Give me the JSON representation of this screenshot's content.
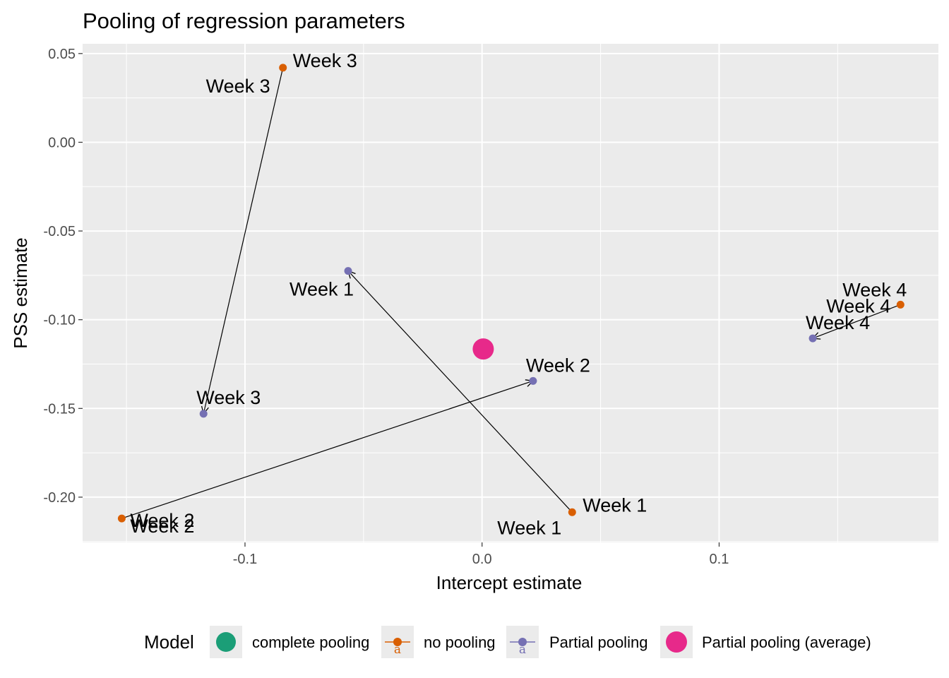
{
  "chart_data": {
    "type": "scatter",
    "title": "Pooling of regression parameters",
    "xlabel": "Intercept estimate",
    "ylabel": "PSS estimate",
    "xlim": [
      -0.1685,
      0.1925
    ],
    "ylim": [
      -0.2255,
      0.0555
    ],
    "x_ticks": [
      -0.1,
      0.0,
      0.1
    ],
    "x_tick_labels": [
      "-0.1",
      "0.0",
      "0.1"
    ],
    "y_ticks": [
      0.05,
      0.0,
      -0.05,
      -0.1,
      -0.15,
      -0.2
    ],
    "y_tick_labels": [
      "0.05",
      "0.00",
      "-0.05",
      "-0.10",
      "-0.15",
      "-0.20"
    ],
    "grid": true,
    "legend": {
      "title": "Model",
      "position": "bottom",
      "entries": [
        {
          "label": "complete pooling",
          "color": "#1b9e77"
        },
        {
          "label": "no pooling",
          "color": "#d95f02"
        },
        {
          "label": "Partial pooling",
          "color": "#7570b3"
        },
        {
          "label": "Partial pooling (average)",
          "color": "#e7298a"
        }
      ]
    },
    "series": [
      {
        "name": "no pooling",
        "color": "#d95f02",
        "points": [
          {
            "label": "Week 1",
            "x": 0.038,
            "y": -0.2085
          },
          {
            "label": "Week 2",
            "x": -0.152,
            "y": -0.212
          },
          {
            "label": "Week 3",
            "x": -0.084,
            "y": 0.042
          },
          {
            "label": "Week 4",
            "x": 0.1765,
            "y": -0.0915
          }
        ]
      },
      {
        "name": "Partial pooling",
        "color": "#7570b3",
        "points": [
          {
            "label": "Week 1",
            "x": -0.0565,
            "y": -0.0725
          },
          {
            "label": "Week 2",
            "x": 0.0215,
            "y": -0.1345
          },
          {
            "label": "Week 3",
            "x": -0.1175,
            "y": -0.153
          },
          {
            "label": "Week 4",
            "x": 0.1395,
            "y": -0.1105
          }
        ]
      },
      {
        "name": "Partial pooling (average)",
        "color": "#e7298a",
        "points": [
          {
            "x": 0.0005,
            "y": -0.1165
          }
        ]
      }
    ]
  }
}
